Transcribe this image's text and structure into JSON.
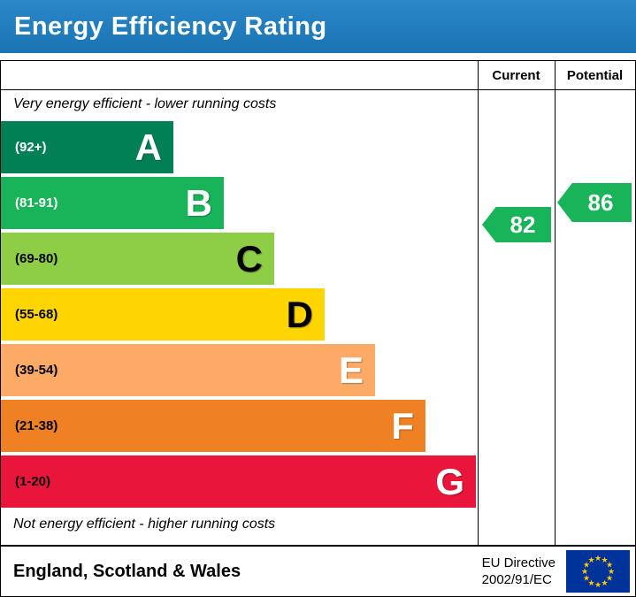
{
  "title": "Energy Efficiency Rating",
  "header": {
    "current": "Current",
    "potential": "Potential"
  },
  "notes": {
    "top": "Very energy efficient - lower running costs",
    "bottom": "Not energy efficient - higher running costs"
  },
  "bands": [
    {
      "letter": "A",
      "range": "(92+)",
      "color": "#008054",
      "label_color": "#ffffff",
      "letter_color": "#ffffff"
    },
    {
      "letter": "B",
      "range": "(81-91)",
      "color": "#19b459",
      "label_color": "#ffffff",
      "letter_color": "#ffffff"
    },
    {
      "letter": "C",
      "range": "(69-80)",
      "color": "#8dce46",
      "label_color": "#000000",
      "letter_color": "#000000"
    },
    {
      "letter": "D",
      "range": "(55-68)",
      "color": "#ffd500",
      "label_color": "#000000",
      "letter_color": "#000000"
    },
    {
      "letter": "E",
      "range": "(39-54)",
      "color": "#fcaa65",
      "label_color": "#000000",
      "letter_color": "#ffffff"
    },
    {
      "letter": "F",
      "range": "(21-38)",
      "color": "#ef8023",
      "label_color": "#000000",
      "letter_color": "#ffffff"
    },
    {
      "letter": "G",
      "range": "(1-20)",
      "color": "#e9153b",
      "label_color": "#000000",
      "letter_color": "#ffffff"
    }
  ],
  "current": {
    "value": "82",
    "color": "#19b459"
  },
  "potential": {
    "value": "86",
    "color": "#19b459"
  },
  "footer": {
    "region": "England, Scotland & Wales",
    "directive_line1": "EU Directive",
    "directive_line2": "2002/91/EC"
  },
  "chart_data": {
    "type": "bar",
    "orientation": "horizontal",
    "title": "Energy Efficiency Rating",
    "bands": [
      {
        "label": "A",
        "range": "92+",
        "color": "#008054"
      },
      {
        "label": "B",
        "range": "81-91",
        "color": "#19b459"
      },
      {
        "label": "C",
        "range": "69-80",
        "color": "#8dce46"
      },
      {
        "label": "D",
        "range": "55-68",
        "color": "#ffd500"
      },
      {
        "label": "E",
        "range": "39-54",
        "color": "#fcaa65"
      },
      {
        "label": "F",
        "range": "21-38",
        "color": "#ef8023"
      },
      {
        "label": "G",
        "range": "1-20",
        "color": "#e9153b"
      }
    ],
    "current_rating": 82,
    "current_band": "B",
    "potential_rating": 86,
    "potential_band": "B",
    "annotations": [
      "Very energy efficient - lower running costs",
      "Not energy efficient - higher running costs"
    ],
    "footer_region": "England, Scotland & Wales",
    "footer_directive": "EU Directive 2002/91/EC"
  }
}
